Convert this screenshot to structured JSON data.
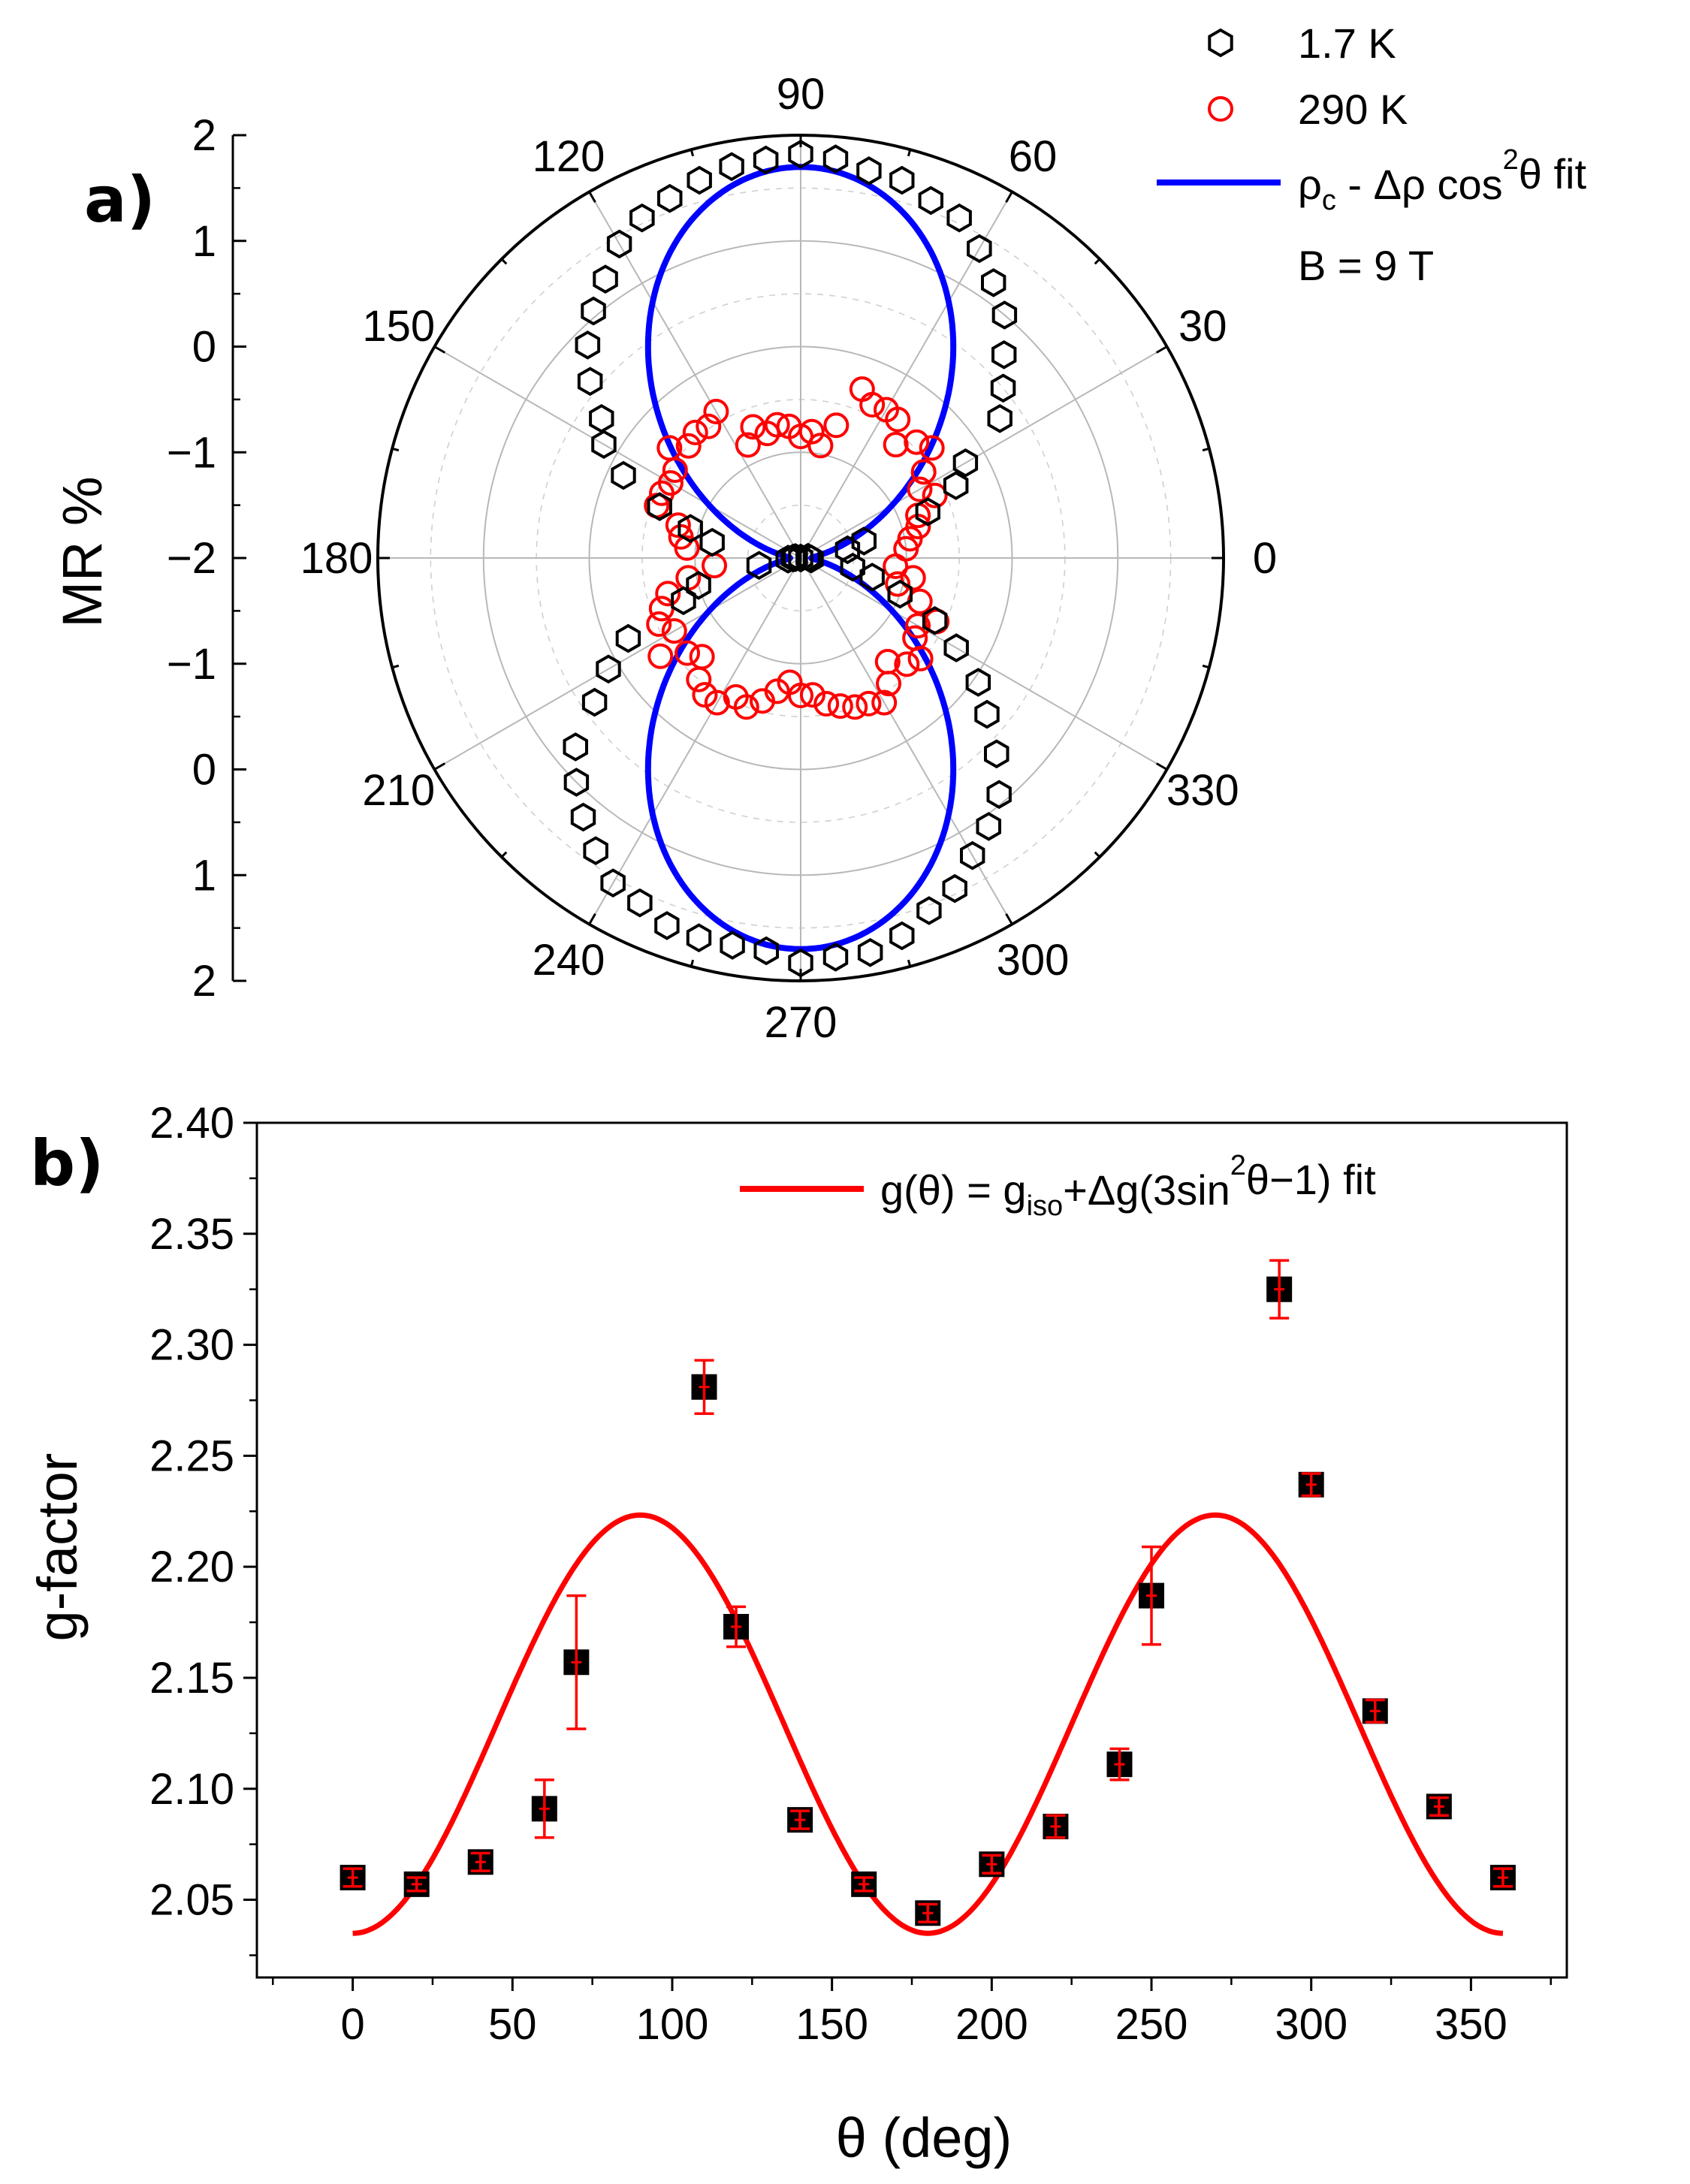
{
  "chart_data": [
    {
      "panel": "a)",
      "type": "scatter",
      "coordinate_system": "polar",
      "angle_unit": "deg",
      "radial_label": "MR %",
      "radial_ticks": [
        "2",
        "1",
        "0",
        "−1",
        "−2",
        "−1",
        "0",
        "1",
        "2"
      ],
      "radial_range": [
        -2,
        2
      ],
      "angle_ticks": [
        "0",
        "30",
        "60",
        "90",
        "120",
        "150",
        "180",
        "210",
        "240",
        "270",
        "300",
        "330"
      ],
      "grid": true,
      "legend_position": "top-right",
      "legend": {
        "entries": [
          {
            "name": "1.7 K",
            "marker": "hexagon-open",
            "color": "#000000"
          },
          {
            "name": "290 K",
            "marker": "circle-open",
            "color": "#ff0000"
          },
          {
            "name_parts": [
              "ρ",
              "c",
              " - Δρ cos",
              "2",
              "θ fit"
            ],
            "marker": "line",
            "color": "#0000ff"
          }
        ],
        "note": "B = 9 T"
      },
      "series": [
        {
          "name": "1.7 K",
          "color": "#000000",
          "points": [
            [
              0,
              -2.0
            ],
            [
              5,
              -1.93
            ],
            [
              10,
              -1.55
            ],
            [
              15,
              -1.38
            ],
            [
              20,
              -0.72
            ],
            [
              25,
              -0.38
            ],
            [
              30,
              -0.2
            ],
            [
              35,
              0.3
            ],
            [
              40,
              0.5
            ],
            [
              45,
              0.72
            ],
            [
              50,
              1.0
            ],
            [
              55,
              1.18
            ],
            [
              60,
              1.38
            ],
            [
              65,
              1.55
            ],
            [
              70,
              1.6
            ],
            [
              75,
              1.7
            ],
            [
              80,
              1.72
            ],
            [
              85,
              1.79
            ],
            [
              90,
              1.82
            ],
            [
              95,
              1.78
            ],
            [
              100,
              1.76
            ],
            [
              105,
              1.7
            ],
            [
              110,
              1.62
            ],
            [
              115,
              1.55
            ],
            [
              120,
              1.43
            ],
            [
              125,
              1.22
            ],
            [
              130,
              1.05
            ],
            [
              135,
              0.85
            ],
            [
              140,
              0.6
            ],
            [
              145,
              0.3
            ],
            [
              150,
              0.15
            ],
            [
              155,
              -0.15
            ],
            [
              160,
              -0.58
            ],
            [
              165,
              -0.92
            ],
            [
              170,
              -1.15
            ],
            [
              175,
              -1.95
            ],
            [
              180,
              -1.93
            ],
            [
              185,
              -1.88
            ],
            [
              190,
              -1.6
            ],
            [
              195,
              -1.0
            ],
            [
              200,
              -0.82
            ],
            [
              205,
              -0.2
            ],
            [
              210,
              0.1
            ],
            [
              215,
              0.38
            ],
            [
              220,
              0.78
            ],
            [
              225,
              1.0
            ],
            [
              230,
              1.2
            ],
            [
              235,
              1.38
            ],
            [
              240,
              1.55
            ],
            [
              245,
              1.6
            ],
            [
              250,
              1.7
            ],
            [
              255,
              1.72
            ],
            [
              260,
              1.72
            ],
            [
              265,
              1.73
            ],
            [
              270,
              1.83
            ],
            [
              275,
              1.79
            ],
            [
              280,
              1.79
            ],
            [
              285,
              1.7
            ],
            [
              290,
              1.55
            ],
            [
              295,
              1.45
            ],
            [
              300,
              1.25
            ],
            [
              305,
              1.1
            ],
            [
              310,
              0.92
            ],
            [
              315,
              0.62
            ],
            [
              320,
              0.3
            ],
            [
              325,
              0.05
            ],
            [
              330,
              -0.3
            ],
            [
              335,
              -0.6
            ],
            [
              340,
              -1.0
            ],
            [
              345,
              -1.3
            ],
            [
              350,
              -1.5
            ],
            [
              355,
              -1.9
            ]
          ]
        },
        {
          "name": "290 K",
          "color": "#ff0000",
          "points": [
            [
              5,
              -1.0
            ],
            [
              10,
              -0.95
            ],
            [
              15,
              -0.85
            ],
            [
              20,
              -0.82
            ],
            [
              25,
              -0.6
            ],
            [
              30,
              -0.7
            ],
            [
              35,
              -0.58
            ],
            [
              40,
              -0.38
            ],
            [
              45,
              -0.45
            ],
            [
              50,
              -0.6
            ],
            [
              55,
              -0.4
            ],
            [
              60,
              -0.38
            ],
            [
              65,
              -0.4
            ],
            [
              70,
              -0.3
            ],
            [
              75,
              -0.7
            ],
            [
              80,
              -0.92
            ],
            [
              85,
              -0.8
            ],
            [
              90,
              -0.85
            ],
            [
              95,
              -0.75
            ],
            [
              100,
              -0.72
            ],
            [
              105,
              -0.78
            ],
            [
              110,
              -0.68
            ],
            [
              115,
              -0.82
            ],
            [
              120,
              -0.4
            ],
            [
              125,
              -0.48
            ],
            [
              130,
              -0.45
            ],
            [
              135,
              -0.5
            ],
            [
              140,
              -0.38
            ],
            [
              145,
              -0.55
            ],
            [
              150,
              -0.58
            ],
            [
              155,
              -0.55
            ],
            [
              160,
              -0.55
            ],
            [
              165,
              -0.8
            ],
            [
              170,
              -0.85
            ],
            [
              175,
              -0.92
            ],
            [
              185,
              -1.18
            ],
            [
              190,
              -0.92
            ],
            [
              195,
              -0.7
            ],
            [
              200,
              -0.6
            ],
            [
              205,
              -0.52
            ],
            [
              210,
              -0.62
            ],
            [
              215,
              -0.38
            ],
            [
              220,
              -0.6
            ],
            [
              225,
              -0.68
            ],
            [
              230,
              -0.5
            ],
            [
              235,
              -0.42
            ],
            [
              240,
              -0.42
            ],
            [
              245,
              -0.55
            ],
            [
              250,
              -0.5
            ],
            [
              255,
              -0.6
            ],
            [
              260,
              -0.72
            ],
            [
              265,
              -0.82
            ],
            [
              270,
              -0.7
            ],
            [
              275,
              -0.7
            ],
            [
              280,
              -0.6
            ],
            [
              285,
              -0.55
            ],
            [
              290,
              -0.5
            ],
            [
              295,
              -0.48
            ],
            [
              300,
              -0.42
            ],
            [
              305,
              -0.55
            ],
            [
              310,
              -0.72
            ],
            [
              315,
              -0.58
            ],
            [
              320,
              -0.52
            ],
            [
              325,
              -0.68
            ],
            [
              330,
              -0.72
            ],
            [
              335,
              -0.58
            ],
            [
              340,
              -0.8
            ],
            [
              345,
              -1.05
            ],
            [
              350,
              -0.92
            ],
            [
              355,
              -1.1
            ]
          ]
        },
        {
          "name": "fit",
          "color": "#0000ff",
          "style": "line",
          "function": "rho_c - drho*cos^2(theta)",
          "params": {
            "rho_c": 1.7,
            "drho": 3.6
          }
        }
      ]
    },
    {
      "panel": "b)",
      "type": "scatter",
      "title": "",
      "xlabel": "θ (deg)",
      "ylabel": "g-factor",
      "xlim": [
        -30,
        380
      ],
      "ylim": [
        2.015,
        2.4
      ],
      "x_ticks": [
        0,
        50,
        100,
        150,
        200,
        250,
        300,
        350
      ],
      "y_ticks": [
        "2.05",
        "2.10",
        "2.15",
        "2.20",
        "2.25",
        "2.30",
        "2.35",
        "2.40"
      ],
      "y_tick_values": [
        2.05,
        2.1,
        2.15,
        2.2,
        2.25,
        2.3,
        2.35,
        2.4
      ],
      "grid": false,
      "legend_position": "top-right",
      "legend": {
        "entries": [
          {
            "name_parts": [
              "g(θ) = g",
              "iso",
              "+Δg(3sin",
              "2",
              "θ−1) fit"
            ],
            "marker": "line",
            "color": "#ff0000"
          }
        ]
      },
      "series": [
        {
          "name": "data",
          "color": "#000000",
          "error_color": "#ff0000",
          "marker": "square-filled",
          "x": [
            0,
            20,
            40,
            60,
            70,
            110,
            120,
            140,
            160,
            180,
            200,
            220,
            240,
            250,
            290,
            300,
            320,
            340,
            360
          ],
          "y": [
            2.06,
            2.057,
            2.067,
            2.091,
            2.157,
            2.281,
            2.173,
            2.086,
            2.057,
            2.044,
            2.066,
            2.083,
            2.111,
            2.187,
            2.325,
            2.237,
            2.135,
            2.092,
            2.06
          ],
          "error": [
            0.004,
            0.003,
            0.004,
            0.013,
            0.03,
            0.012,
            0.009,
            0.004,
            0.003,
            0.004,
            0.004,
            0.005,
            0.007,
            0.022,
            0.013,
            0.005,
            0.005,
            0.004,
            0.004
          ]
        },
        {
          "name": "fit",
          "color": "#ff0000",
          "style": "line",
          "function": "g_iso + dg*(3*sin^2(theta) - 1)",
          "params": {
            "g_iso": 2.0977,
            "dg": 0.0628
          },
          "x_range": [
            0,
            360
          ]
        }
      ]
    }
  ]
}
